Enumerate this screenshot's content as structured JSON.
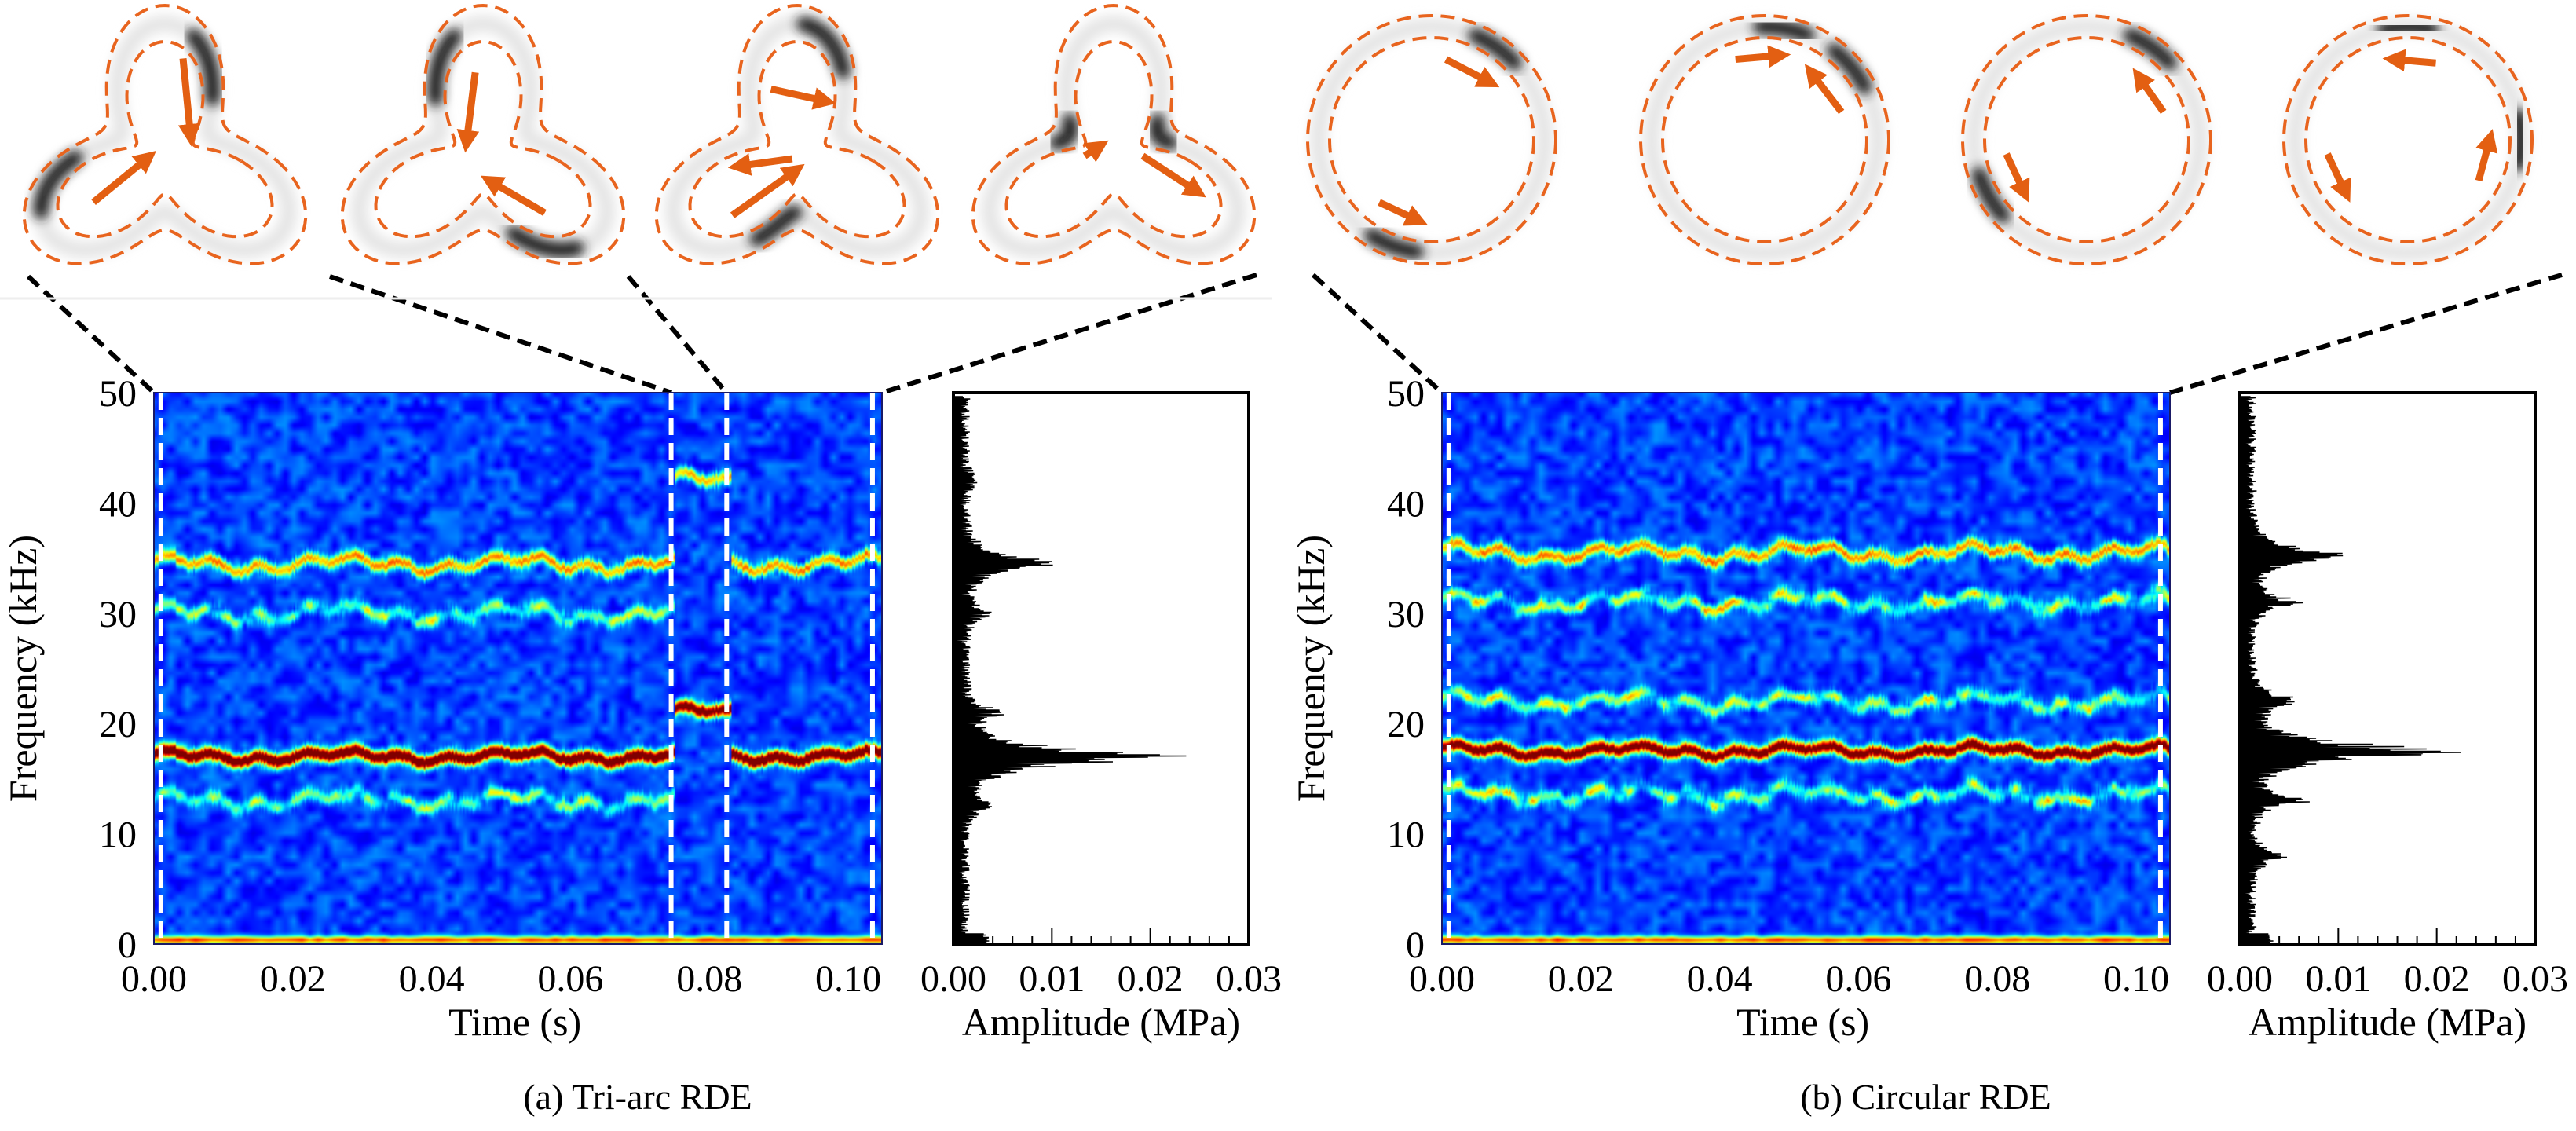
{
  "colors": {
    "ring": "#e8641e",
    "arrow": "#e35f12",
    "connector": "#000000",
    "marker_line": "#ffffff"
  },
  "chart_data": [
    {
      "type": "heatmap",
      "panel": "a",
      "title": "(a) Tri-arc RDE",
      "xlabel": "Time (s)",
      "ylabel": "Frequency (kHz)",
      "xlim": [
        0,
        0.104
      ],
      "ylim": [
        0,
        50
      ],
      "xticks": [
        "0.00",
        "0.02",
        "0.04",
        "0.06",
        "0.08",
        "0.10"
      ],
      "yticks": [
        "0",
        "10",
        "20",
        "30",
        "40",
        "50"
      ],
      "marker_times": [
        0.001,
        0.0745,
        0.0825,
        0.1035
      ],
      "bands": [
        {
          "t": [
            0,
            0.0745
          ],
          "freq_khz": 17,
          "level": 1.0
        },
        {
          "t": [
            0,
            0.0745
          ],
          "freq_khz": 34.5,
          "level": 0.55
        },
        {
          "t": [
            0,
            0.0745
          ],
          "freq_khz": 30,
          "level": 0.28
        },
        {
          "t": [
            0,
            0.0745
          ],
          "freq_khz": 13,
          "level": 0.26
        },
        {
          "t": [
            0.0745,
            0.0825
          ],
          "freq_khz": 21,
          "level": 0.9
        },
        {
          "t": [
            0.0745,
            0.0825
          ],
          "freq_khz": 42,
          "level": 0.5
        },
        {
          "t": [
            0.0825,
            0.104
          ],
          "freq_khz": 17,
          "level": 1.0
        },
        {
          "t": [
            0.0825,
            0.104
          ],
          "freq_khz": 34.5,
          "level": 0.55
        },
        {
          "t": [
            0,
            0.104
          ],
          "freq_khz": 0.3,
          "level": 0.6
        }
      ]
    },
    {
      "type": "line",
      "panel": "a",
      "xlabel": "Amplitude (MPa)",
      "xlim": [
        0,
        0.03
      ],
      "ylim": [
        0,
        50
      ],
      "xticks": [
        "0.00",
        "0.01",
        "0.02",
        "0.03"
      ],
      "peaks": [
        {
          "freq_khz": 17,
          "amplitude": 0.026
        },
        {
          "freq_khz": 34.5,
          "amplitude": 0.011
        },
        {
          "freq_khz": 21,
          "amplitude": 0.0045
        },
        {
          "freq_khz": 30,
          "amplitude": 0.003
        },
        {
          "freq_khz": 12.5,
          "amplitude": 0.0035
        },
        {
          "freq_khz": 42,
          "amplitude": 0.0015
        }
      ]
    },
    {
      "type": "heatmap",
      "panel": "b",
      "title": "(b) Circular RDE",
      "xlabel": "Time (s)",
      "ylabel": "Frequency (kHz)",
      "xlim": [
        0,
        0.104
      ],
      "ylim": [
        0,
        50
      ],
      "xticks": [
        "0.00",
        "0.02",
        "0.04",
        "0.06",
        "0.08",
        "0.10"
      ],
      "yticks": [
        "0",
        "10",
        "20",
        "30",
        "40",
        "50"
      ],
      "marker_times": [
        0.001,
        0.1035
      ],
      "bands": [
        {
          "t": [
            0,
            0.104
          ],
          "freq_khz": 17.5,
          "level": 0.92
        },
        {
          "t": [
            0,
            0.104
          ],
          "freq_khz": 35.5,
          "level": 0.55
        },
        {
          "t": [
            0,
            0.104
          ],
          "freq_khz": 31,
          "level": 0.32
        },
        {
          "t": [
            0,
            0.104
          ],
          "freq_khz": 22,
          "level": 0.3
        },
        {
          "t": [
            0,
            0.104
          ],
          "freq_khz": 13.5,
          "level": 0.32
        },
        {
          "t": [
            0,
            0.104
          ],
          "freq_khz": 0.3,
          "level": 0.6
        }
      ]
    },
    {
      "type": "line",
      "panel": "b",
      "xlabel": "Amplitude (MPa)",
      "xlim": [
        0,
        0.03
      ],
      "ylim": [
        0,
        50
      ],
      "xticks": [
        "0.00",
        "0.01",
        "0.02",
        "0.03"
      ],
      "peaks": [
        {
          "freq_khz": 17.5,
          "amplitude": 0.025
        },
        {
          "freq_khz": 35.3,
          "amplitude": 0.012
        },
        {
          "freq_khz": 22,
          "amplitude": 0.007
        },
        {
          "freq_khz": 31,
          "amplitude": 0.006
        },
        {
          "freq_khz": 13,
          "amplitude": 0.0065
        },
        {
          "freq_khz": 8,
          "amplitude": 0.004
        }
      ]
    }
  ],
  "snapshots": {
    "tri_arc": [
      {
        "blobs": [
          -65,
          170
        ],
        "arrows": [
          [
            -80,
            25,
            -45
          ],
          [
            150,
            60,
            190
          ]
        ]
      },
      {
        "blobs": [
          -115,
          55
        ],
        "arrows": [
          [
            -95,
            50,
            -130
          ],
          [
            40,
            55,
            70
          ]
        ]
      },
      {
        "blobs": [
          -75,
          105
        ],
        "arrows": [
          [
            -110,
            40,
            -65
          ],
          [
            -155,
            50,
            -185
          ],
          [
            140,
            50,
            100
          ]
        ]
      },
      {
        "blobs": [
          -150,
          -30
        ],
        "arrows": [
          [
            -170,
            45,
            -135
          ],
          [
            -10,
            45,
            20
          ]
        ]
      }
    ],
    "circular": [
      {
        "blobs": [
          -55,
          110
        ],
        "arrows": [
          [
            -80,
            30,
            -45
          ],
          [
            130,
            30,
            100
          ]
        ]
      },
      {
        "blobs": [
          -80,
          -40
        ],
        "arrows": [
          [
            -110,
            25,
            -80
          ],
          [
            -20,
            30,
            -55
          ]
        ]
      },
      {
        "blobs": [
          -55,
          150
        ],
        "arrows": [
          [
            -20,
            30,
            -50
          ],
          [
            170,
            30,
            140
          ]
        ]
      },
      {
        "blobs": [
          -90,
          0
        ],
        "arrows": [
          [
            -70,
            30,
            -100
          ],
          [
            30,
            30,
            0
          ],
          [
            170,
            30,
            140
          ]
        ]
      }
    ]
  }
}
